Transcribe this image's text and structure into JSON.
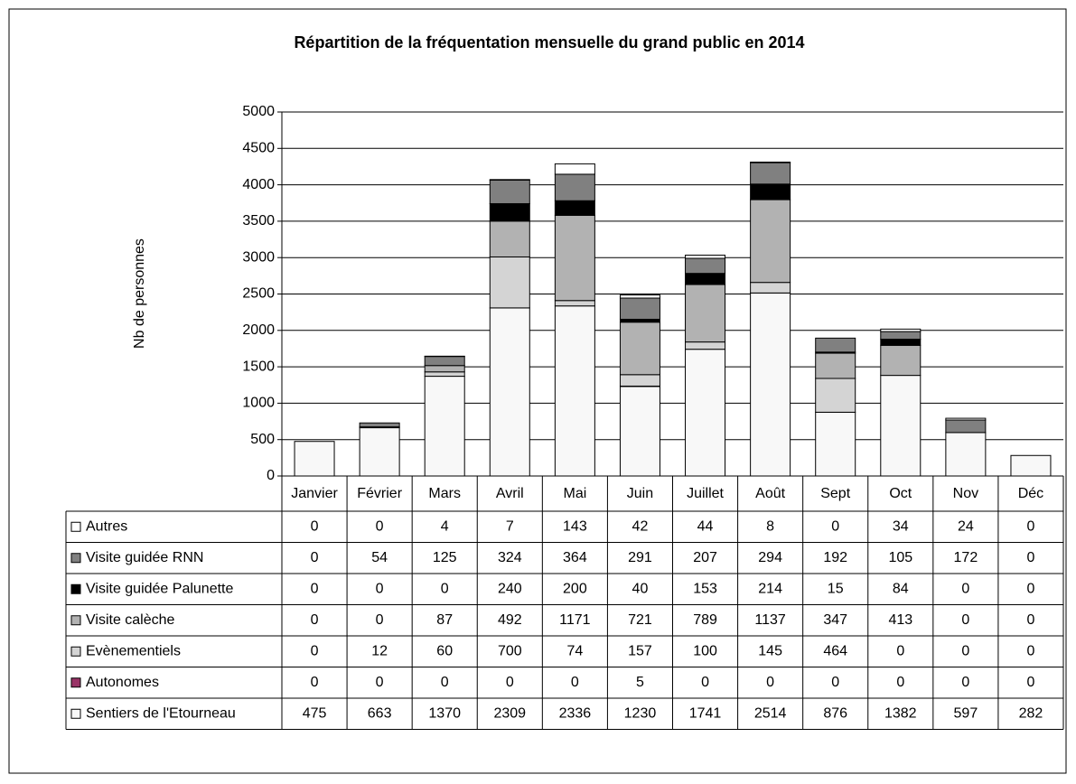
{
  "chart_data": {
    "type": "stacked_bar",
    "title": "Répartition de la fréquentation mensuelle du grand public en 2014",
    "y_label": "Nb de personnes",
    "categories": [
      "Janvier",
      "Février",
      "Mars",
      "Avril",
      "Mai",
      "Juin",
      "Juillet",
      "Août",
      "Sept",
      "Oct",
      "Nov",
      "Déc"
    ],
    "series": [
      {
        "name": "Sentiers de l'Etourneau",
        "color": "#f8f8f8",
        "values": [
          475,
          663,
          1370,
          2309,
          2336,
          1230,
          1741,
          2514,
          876,
          1382,
          597,
          282
        ]
      },
      {
        "name": "Autonomes",
        "color": "#993366",
        "values": [
          0,
          0,
          0,
          0,
          0,
          5,
          0,
          0,
          0,
          0,
          0,
          0
        ]
      },
      {
        "name": "Evènementiels",
        "color": "#d4d4d4",
        "values": [
          0,
          12,
          60,
          700,
          74,
          157,
          100,
          145,
          464,
          0,
          0,
          0
        ]
      },
      {
        "name": "Visite calèche",
        "color": "#b2b2b2",
        "values": [
          0,
          0,
          87,
          492,
          1171,
          721,
          789,
          1137,
          347,
          413,
          0,
          0
        ]
      },
      {
        "name": "Visite guidée Palunette",
        "color": "#000000",
        "values": [
          0,
          0,
          0,
          240,
          200,
          40,
          153,
          214,
          15,
          84,
          0,
          0
        ]
      },
      {
        "name": "Visite guidée RNN",
        "color": "#808080",
        "values": [
          0,
          54,
          125,
          324,
          364,
          291,
          207,
          294,
          192,
          105,
          172,
          0
        ]
      },
      {
        "name": "Autres",
        "color": "#ffffff",
        "values": [
          0,
          0,
          4,
          7,
          143,
          42,
          44,
          8,
          0,
          34,
          24,
          0
        ]
      }
    ],
    "ylim": [
      0,
      5000
    ],
    "yticks": [
      0,
      500,
      1000,
      1500,
      2000,
      2500,
      3000,
      3500,
      4000,
      4500,
      5000
    ],
    "grid": true
  }
}
